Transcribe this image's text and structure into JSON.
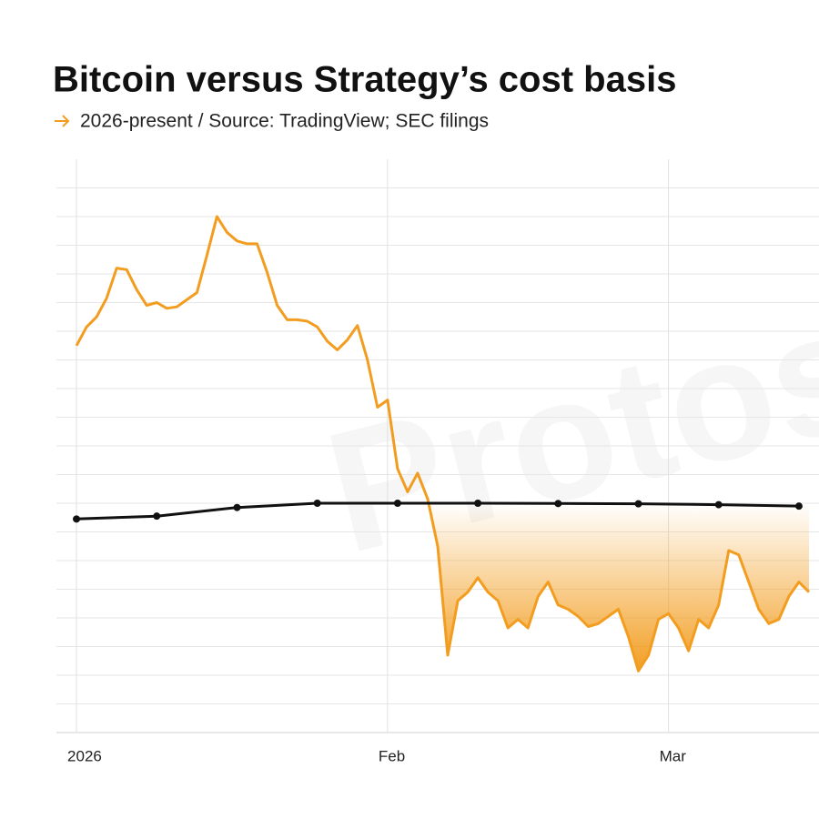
{
  "chart_data": {
    "type": "line",
    "title": "Bitcoin versus Strategy’s cost basis",
    "subtitle": "2026-present / Source: TradingView; SEC filings",
    "watermark": "Protos",
    "xlim": [
      "2025-12-30",
      "2026-03-16"
    ],
    "xticks": [
      {
        "value": "2026-01-01",
        "label": "2026"
      },
      {
        "value": "2026-02-01",
        "label": "Feb"
      },
      {
        "value": "2026-03-01",
        "label": "Mar"
      }
    ],
    "ylim": [
      60000,
      100000
    ],
    "yticks": [
      62000,
      64000,
      66000,
      68000,
      70000,
      72000,
      74000,
      76000,
      78000,
      80000,
      82000,
      84000,
      86000,
      88000,
      90000,
      92000,
      94000,
      96000,
      98000
    ],
    "grid": true,
    "shade_below": true,
    "series": [
      {
        "color": "#f29d1f",
        "markers": false,
        "x": [
          "2026-01-01",
          "2026-01-02",
          "2026-01-03",
          "2026-01-04",
          "2026-01-05",
          "2026-01-06",
          "2026-01-07",
          "2026-01-08",
          "2026-01-09",
          "2026-01-10",
          "2026-01-11",
          "2026-01-12",
          "2026-01-13",
          "2026-01-14",
          "2026-01-15",
          "2026-01-16",
          "2026-01-17",
          "2026-01-18",
          "2026-01-19",
          "2026-01-20",
          "2026-01-21",
          "2026-01-22",
          "2026-01-23",
          "2026-01-24",
          "2026-01-25",
          "2026-01-26",
          "2026-01-27",
          "2026-01-28",
          "2026-01-29",
          "2026-01-30",
          "2026-01-31",
          "2026-02-01",
          "2026-02-02",
          "2026-02-03",
          "2026-02-04",
          "2026-02-05",
          "2026-02-06",
          "2026-02-07",
          "2026-02-08",
          "2026-02-09",
          "2026-02-10",
          "2026-02-11",
          "2026-02-12",
          "2026-02-13",
          "2026-02-14",
          "2026-02-15",
          "2026-02-16",
          "2026-02-17",
          "2026-02-18",
          "2026-02-19",
          "2026-02-20",
          "2026-02-21",
          "2026-02-22",
          "2026-02-23",
          "2026-02-24",
          "2026-02-25",
          "2026-02-26",
          "2026-02-27",
          "2026-02-28",
          "2026-03-01",
          "2026-03-02",
          "2026-03-03",
          "2026-03-04",
          "2026-03-05",
          "2026-03-06",
          "2026-03-07",
          "2026-03-08",
          "2026-03-09",
          "2026-03-10",
          "2026-03-11",
          "2026-03-12",
          "2026-03-13",
          "2026-03-14",
          "2026-03-15"
        ],
        "values": [
          87000,
          88300,
          89000,
          90300,
          92400,
          92300,
          90900,
          89800,
          90000,
          89600,
          89700,
          90200,
          90700,
          93300,
          96000,
          94900,
          94300,
          94100,
          94100,
          92100,
          89800,
          88800,
          88800,
          88700,
          88300,
          87300,
          86700,
          87400,
          88400,
          86000,
          82700,
          83200,
          78400,
          76800,
          78100,
          76300,
          73000,
          65400,
          69200,
          69800,
          70800,
          69800,
          69200,
          67300,
          67900,
          67300,
          69500,
          70500,
          68900,
          68600,
          68100,
          67400,
          67600,
          68100,
          68600,
          66700,
          64300,
          65400,
          67900,
          68300,
          67300,
          65700,
          67900,
          67300,
          68900,
          72700,
          72400,
          70500,
          68600,
          67600,
          67900,
          69500,
          70500,
          69800
        ]
      },
      {
        "color": "#111111",
        "markers": true,
        "x": [
          "2026-01-01",
          "2026-01-09",
          "2026-01-17",
          "2026-01-25",
          "2026-02-02",
          "2026-02-10",
          "2026-02-18",
          "2026-02-26",
          "2026-03-06",
          "2026-03-14"
        ],
        "values": [
          74900,
          75100,
          75700,
          76000,
          76000,
          76000,
          75980,
          75960,
          75900,
          75800
        ]
      }
    ]
  }
}
